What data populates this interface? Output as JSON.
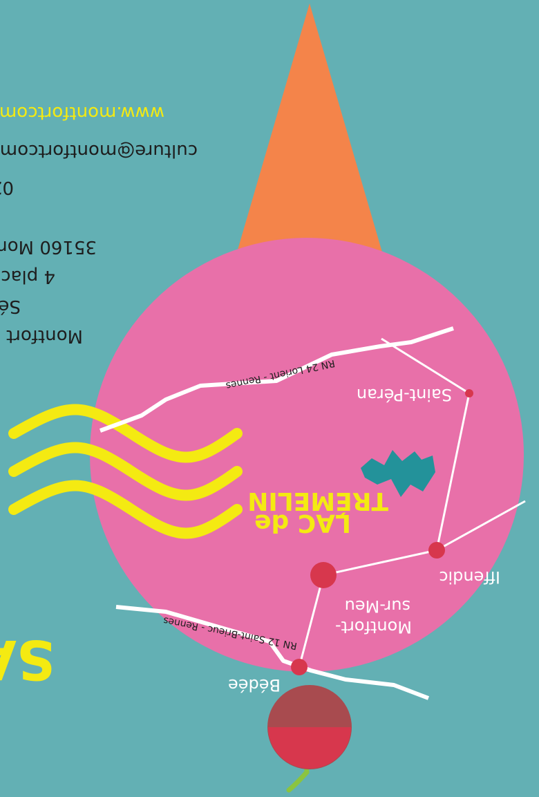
{
  "colors": {
    "background": "#63b0b4",
    "circle": "#e870a9",
    "cone": "#f4844a",
    "waves": "#f4ea12",
    "lake": "#23929a",
    "dot": "#d7374d",
    "cherry": "#a84b4f",
    "stem": "#8bc43f",
    "yellow_text": "#f4ea12",
    "dark_text": "#1e1e1e",
    "white": "#ffffff"
  },
  "orientation": "upside-down",
  "contact": {
    "lines": [
      "Montfort",
      "Sé",
      "4 plac",
      "35160 Mon",
      "02",
      "culture@montfortcom",
      "www.montfortcom"
    ]
  },
  "map": {
    "lake_title_line1": "LAC de",
    "lake_title_line2": "TRÉMELIN",
    "towns": [
      {
        "name": "Saint-Péran"
      },
      {
        "name": "Iffendic"
      },
      {
        "name_line1": "Montfort-",
        "name_line2": "sur-Meu"
      },
      {
        "name": "Bédée"
      }
    ],
    "roads": [
      {
        "label": "RN 24 Lorient - Rennes"
      },
      {
        "label": "RN 12 Saint-Brieuc - Rennes"
      }
    ]
  },
  "partial_heading": "SA"
}
